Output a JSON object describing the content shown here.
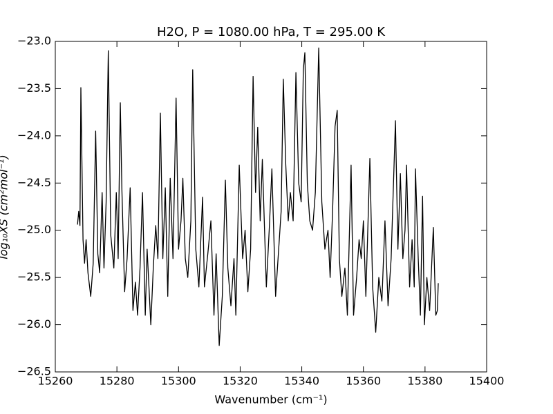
{
  "chart_data": {
    "type": "line",
    "title": "H2O, P = 1080.00 hPa, T = 295.00 K",
    "x_label": "Wavenumber (cm⁻¹)",
    "y_label": "log₁₀XS (cm²mol⁻¹)",
    "x": [
      15267.2,
      15267.6,
      15268.0,
      15268.3,
      15269.0,
      15269.5,
      15270.0,
      15270.6,
      15271.5,
      15272.3,
      15273.1,
      15273.8,
      15274.4,
      15275.2,
      15275.8,
      15276.5,
      15277.2,
      15278.0,
      15279.0,
      15279.8,
      15280.4,
      15281.1,
      15281.6,
      15282.5,
      15283.3,
      15284.3,
      15285.2,
      15286.0,
      15286.7,
      15287.5,
      15288.3,
      15289.2,
      15289.8,
      15291.0,
      15291.8,
      15292.6,
      15293.3,
      15294.1,
      15294.9,
      15295.7,
      15296.5,
      15297.3,
      15298.2,
      15299.2,
      15300.0,
      15300.8,
      15301.4,
      15302.2,
      15303.0,
      15304.0,
      15304.6,
      15305.6,
      15306.6,
      15307.8,
      15308.4,
      15309.5,
      15310.5,
      15311.5,
      15312.2,
      15313.2,
      15314.2,
      15315.2,
      15316.0,
      15317.0,
      15318.0,
      15318.6,
      15319.7,
      15320.8,
      15321.6,
      15322.5,
      15323.4,
      15324.2,
      15325.0,
      15325.7,
      15326.5,
      15327.2,
      15328.5,
      15329.5,
      15330.3,
      15331.5,
      15332.5,
      15333.3,
      15334.0,
      15334.8,
      15335.6,
      15336.3,
      15337.2,
      15338.1,
      15339.0,
      15339.8,
      15340.5,
      15341.0,
      15341.8,
      15342.6,
      15343.5,
      15344.4,
      15345.5,
      15346.5,
      15347.5,
      15348.5,
      15349.2,
      15350.0,
      15350.8,
      15351.5,
      15352.2,
      15353.0,
      15354.0,
      15354.8,
      15356.0,
      15356.8,
      15357.8,
      15358.6,
      15359.3,
      15360.0,
      15360.8,
      15362.1,
      15363.0,
      15364.0,
      15365.0,
      15366.0,
      15367.0,
      15368.0,
      15369.0,
      15370.4,
      15371.2,
      15372.0,
      15372.8,
      15373.5,
      15374.0,
      15375.0,
      15375.8,
      15376.5,
      15376.9,
      15377.8,
      15378.5,
      15379.2,
      15379.8,
      15380.6,
      15381.5,
      15382.7,
      15383.5,
      15384.0,
      15384.3
    ],
    "series": [
      {
        "name": "H2O",
        "color": "#000000",
        "values": [
          -24.94,
          -24.8,
          -24.95,
          -23.49,
          -25.1,
          -25.35,
          -25.1,
          -25.45,
          -25.7,
          -25.35,
          -23.95,
          -25.25,
          -25.45,
          -24.6,
          -25.4,
          -24.7,
          -23.1,
          -25.05,
          -25.4,
          -24.6,
          -25.3,
          -23.65,
          -24.55,
          -25.65,
          -25.3,
          -24.55,
          -25.85,
          -25.55,
          -25.9,
          -25.4,
          -24.6,
          -25.9,
          -25.2,
          -26.0,
          -25.4,
          -24.95,
          -25.3,
          -23.76,
          -25.3,
          -24.55,
          -25.7,
          -24.45,
          -25.3,
          -23.6,
          -25.2,
          -24.9,
          -24.45,
          -25.3,
          -25.5,
          -24.9,
          -23.3,
          -25.2,
          -25.6,
          -24.65,
          -25.6,
          -25.25,
          -24.9,
          -25.9,
          -25.25,
          -26.22,
          -25.7,
          -24.47,
          -25.4,
          -25.8,
          -25.3,
          -25.9,
          -24.31,
          -25.3,
          -25.0,
          -25.65,
          -25.2,
          -23.37,
          -24.6,
          -23.91,
          -24.9,
          -24.25,
          -25.6,
          -24.95,
          -24.35,
          -25.7,
          -25.2,
          -24.8,
          -23.4,
          -24.3,
          -24.9,
          -24.6,
          -24.9,
          -23.33,
          -24.5,
          -24.7,
          -23.3,
          -23.12,
          -24.5,
          -24.9,
          -25.0,
          -24.6,
          -23.07,
          -24.7,
          -25.2,
          -25.0,
          -25.5,
          -24.8,
          -23.9,
          -23.73,
          -25.3,
          -25.7,
          -25.4,
          -25.9,
          -24.31,
          -25.9,
          -25.5,
          -25.1,
          -25.3,
          -24.9,
          -25.7,
          -24.24,
          -25.6,
          -26.08,
          -25.5,
          -25.75,
          -24.9,
          -25.8,
          -25.3,
          -23.84,
          -25.2,
          -24.4,
          -25.3,
          -25.0,
          -24.31,
          -25.6,
          -25.1,
          -25.6,
          -24.35,
          -25.3,
          -25.9,
          -24.64,
          -26.0,
          -25.5,
          -25.85,
          -24.97,
          -25.9,
          -25.85,
          -25.56
        ]
      }
    ],
    "xlim": [
      15260,
      15400
    ],
    "xticks": [
      15260,
      15280,
      15300,
      15320,
      15340,
      15360,
      15380,
      15400
    ],
    "ylim": [
      -26.5,
      -23.0
    ],
    "yticks": [
      {
        "value": -26.5,
        "label": "−26.5"
      },
      {
        "value": -26.0,
        "label": "−26.0"
      },
      {
        "value": -25.5,
        "label": "−25.5"
      },
      {
        "value": -25.0,
        "label": "−25.0"
      },
      {
        "value": -24.5,
        "label": "−24.5"
      },
      {
        "value": -24.0,
        "label": "−24.0"
      },
      {
        "value": -23.5,
        "label": "−23.5"
      },
      {
        "value": -23.0,
        "label": "−23.0"
      }
    ],
    "grid": false
  }
}
